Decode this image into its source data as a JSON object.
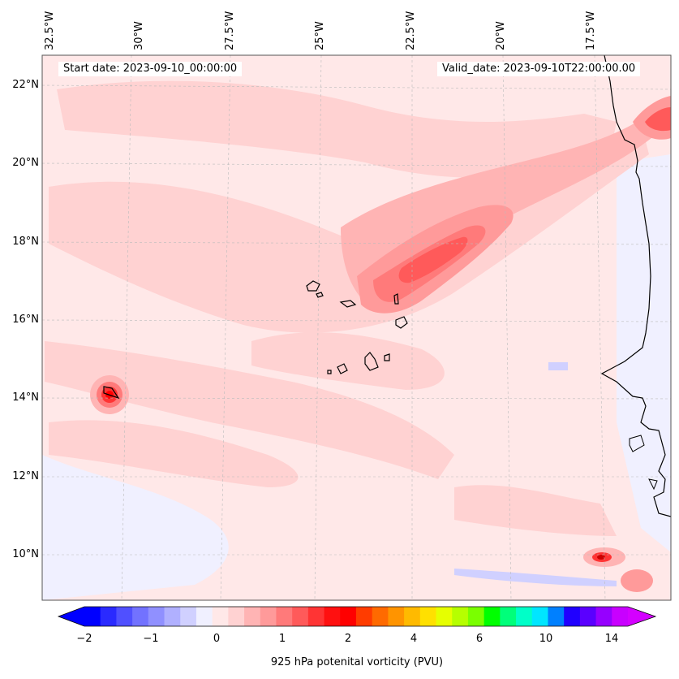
{
  "map": {
    "header": {
      "start_date": "Start date: 2023-09-10_00:00:00",
      "valid_date": "Valid_date: 2023-09-10T22:00:00.00"
    },
    "lon_ticks": [
      "32.5°W",
      "30°W",
      "27.5°W",
      "25°W",
      "22.5°W",
      "20°W",
      "17.5°W"
    ],
    "lat_ticks": [
      "22°N",
      "20°N",
      "18°N",
      "16°N",
      "14°N",
      "12°N",
      "10°N"
    ],
    "colorbar": {
      "label": "925 hPa potenital vorticity (PVU)",
      "ticks": [
        "−2",
        "−1",
        "0",
        "1",
        "2",
        "4",
        "6",
        "10",
        "14"
      ],
      "colors": [
        "#0000ff",
        "#2a2aff",
        "#5050ff",
        "#7272ff",
        "#9090ff",
        "#b0b0ff",
        "#d0d0ff",
        "#f0f0ff",
        "#ffe8e8",
        "#ffd2d2",
        "#ffb4b4",
        "#ff9a9a",
        "#ff7a7a",
        "#ff5a5a",
        "#ff3434",
        "#ff1010",
        "#ff0000",
        "#ff3c00",
        "#ff6a00",
        "#ff9400",
        "#ffba00",
        "#ffe000",
        "#e6ff00",
        "#b6ff00",
        "#7aff00",
        "#00ff00",
        "#00ff7a",
        "#00ffc8",
        "#00e6ff",
        "#0080ff",
        "#2000ff",
        "#5a00ff",
        "#9600ff",
        "#c800ff"
      ]
    },
    "colors": {
      "background_field": "#ffe8e8",
      "coast": "#000000",
      "grid": "#bbbbbb"
    }
  }
}
